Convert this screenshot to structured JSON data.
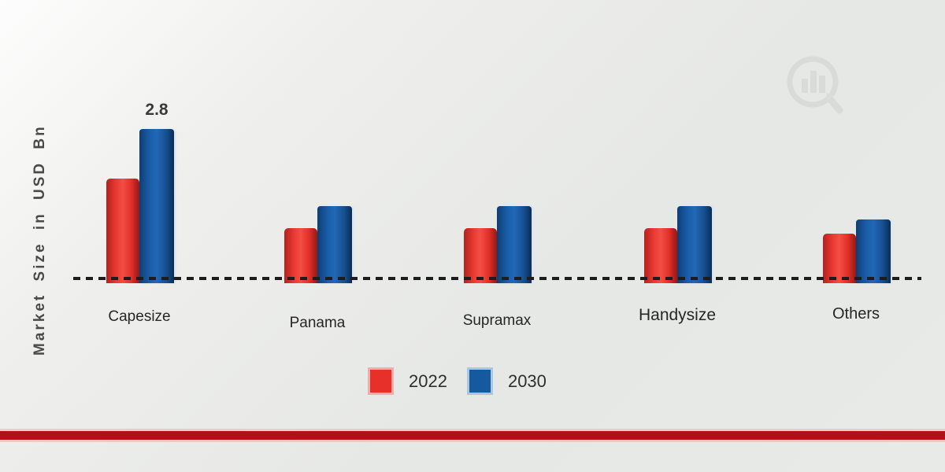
{
  "chart_data": {
    "type": "bar",
    "title": "",
    "ylabel": "Market Size in USD Bn",
    "categories": [
      "Capesize",
      "Panama",
      "Supramax",
      "Handysize",
      "Others"
    ],
    "series": [
      {
        "name": "2022",
        "color": "#e73a31",
        "values": [
          1.9,
          1.0,
          1.0,
          1.0,
          0.9
        ]
      },
      {
        "name": "2030",
        "color": "#175ba4",
        "values": [
          2.8,
          1.4,
          1.4,
          1.4,
          1.15
        ]
      }
    ],
    "annotations": [
      {
        "category": "Capesize",
        "series": "2030",
        "text": "2.8"
      }
    ],
    "ylim": [
      0,
      3
    ],
    "grid": false,
    "axes_visible": false,
    "baseline_style": "dashed",
    "legend_position": "bottom-center"
  },
  "watermark": {
    "icon": "magnifier-bar-chart-logo"
  },
  "colors": {
    "bar_2022": "#e73a31",
    "bar_2030": "#175ba4",
    "baseline": "#1c1c1c",
    "bottom_band": "#b01116",
    "background": "#e8eae8"
  }
}
